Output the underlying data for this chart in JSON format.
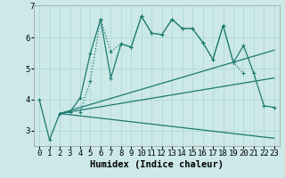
{
  "title": "",
  "xlabel": "Humidex (Indice chaleur)",
  "bg_color": "#cce8e8",
  "line_color": "#1a7a6e",
  "xlim": [
    -0.5,
    23.5
  ],
  "ylim": [
    2.5,
    7.0
  ],
  "yticks": [
    3,
    4,
    5,
    6
  ],
  "xticks": [
    0,
    1,
    2,
    3,
    4,
    5,
    6,
    7,
    8,
    9,
    10,
    11,
    12,
    13,
    14,
    15,
    16,
    17,
    18,
    19,
    20,
    21,
    22,
    23
  ],
  "series": [
    {
      "x": [
        0,
        1,
        2,
        3,
        4,
        5,
        6,
        7,
        8,
        9,
        10,
        11,
        12,
        13,
        14,
        15,
        16,
        17,
        18,
        19,
        20,
        21,
        22,
        23
      ],
      "y": [
        4.0,
        2.7,
        3.55,
        3.6,
        4.05,
        5.5,
        6.6,
        4.7,
        5.8,
        5.7,
        6.7,
        6.15,
        6.1,
        6.6,
        6.3,
        6.3,
        5.85,
        5.3,
        6.4,
        5.2,
        5.75,
        4.85,
        3.8,
        3.75
      ],
      "linestyle": "solid",
      "marker": true
    },
    {
      "x": [
        4,
        5,
        6,
        7,
        8,
        9,
        10,
        11,
        12,
        13,
        14,
        15,
        16,
        17,
        18,
        19,
        20
      ],
      "y": [
        3.6,
        4.6,
        6.6,
        5.55,
        5.8,
        5.7,
        6.7,
        6.15,
        6.1,
        6.6,
        6.3,
        6.3,
        5.85,
        5.3,
        6.4,
        5.2,
        4.85
      ],
      "linestyle": "dotted",
      "marker": true
    },
    {
      "x": [
        2,
        23
      ],
      "y": [
        3.55,
        5.6
      ],
      "linestyle": "solid",
      "marker": false
    },
    {
      "x": [
        2,
        23
      ],
      "y": [
        3.55,
        4.7
      ],
      "linestyle": "solid",
      "marker": false
    },
    {
      "x": [
        2,
        23
      ],
      "y": [
        3.55,
        2.75
      ],
      "linestyle": "solid",
      "marker": false
    }
  ],
  "grid_color": "#aad4d4",
  "tick_fontsize": 6.5,
  "label_fontsize": 7.5,
  "linewidth": 0.9,
  "markersize": 3.5
}
